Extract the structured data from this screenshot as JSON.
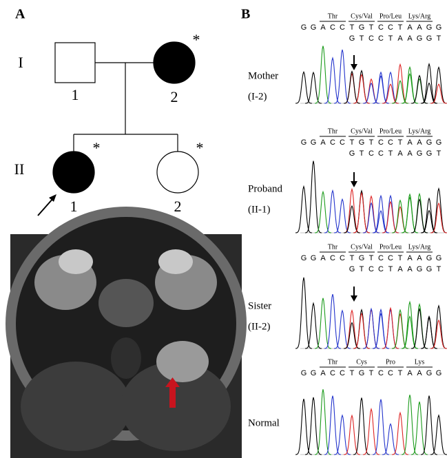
{
  "panel_a": {
    "label": "A",
    "generations": [
      "I",
      "II"
    ],
    "individuals": [
      {
        "number": "1"
      },
      {
        "number": "2",
        "mark": "*"
      },
      {
        "number": "1",
        "mark": "*"
      },
      {
        "number": "2",
        "mark": "*"
      }
    ]
  },
  "panel_b": {
    "label": "B",
    "tracks": [
      {
        "name": "Mother",
        "id": "(I-2)",
        "codons": [
          "Thr",
          "Cys/Val",
          "Pro/Leu",
          "Lys/Arg"
        ],
        "sequence": [
          "G",
          "G",
          "A",
          "C",
          "C",
          "T",
          "G",
          "T",
          "C",
          "C",
          "T",
          "A",
          "A",
          "G",
          "G"
        ],
        "second_sequence": [
          "G",
          "T",
          "C",
          "C",
          "T",
          "A",
          "A",
          "G",
          "G",
          "T"
        ]
      },
      {
        "name": "Proband",
        "id": "(II-1)",
        "codons": [
          "Thr",
          "Cys/Val",
          "Pro/Leu",
          "Lys/Arg"
        ],
        "sequence": [
          "G",
          "G",
          "A",
          "C",
          "C",
          "T",
          "G",
          "T",
          "C",
          "C",
          "T",
          "A",
          "A",
          "G",
          "G"
        ],
        "second_sequence": [
          "G",
          "T",
          "C",
          "C",
          "T",
          "A",
          "A",
          "G",
          "G",
          "T"
        ]
      },
      {
        "name": "Sister",
        "id": "(II-2)",
        "codons": [
          "Thr",
          "Cys/Val",
          "Pro/Leu",
          "Lys/Arg"
        ],
        "sequence": [
          "G",
          "G",
          "A",
          "C",
          "C",
          "T",
          "G",
          "T",
          "C",
          "C",
          "T",
          "A",
          "A",
          "G",
          "G"
        ],
        "second_sequence": [
          "G",
          "T",
          "C",
          "C",
          "T",
          "A",
          "A",
          "G",
          "G",
          "T"
        ]
      },
      {
        "name": "Normal",
        "codons": [
          "Thr",
          "Cys",
          "Pro",
          "Lys"
        ],
        "sequence": [
          "G",
          "G",
          "A",
          "C",
          "C",
          "T",
          "G",
          "T",
          "C",
          "C",
          "T",
          "A",
          "A",
          "G",
          "G"
        ]
      }
    ]
  }
}
